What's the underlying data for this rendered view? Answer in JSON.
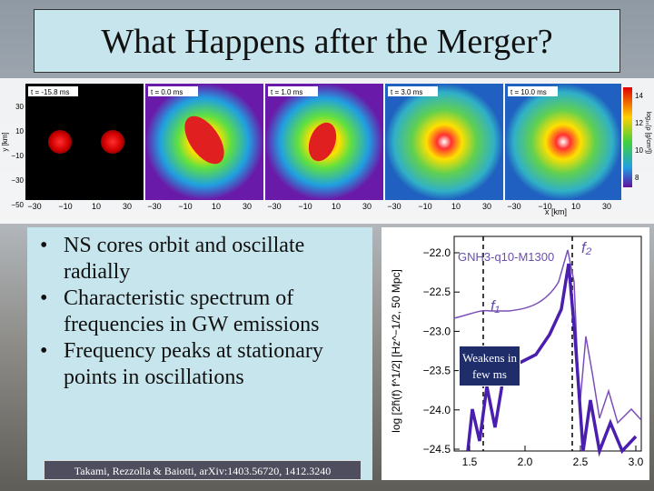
{
  "slide": {
    "title": "What Happens after the Merger?",
    "simulation": {
      "panels": [
        "t = -15.8 ms",
        "t = 0.0 ms",
        "t = 1.0 ms",
        "t = 3.0 ms",
        "t = 10.0 ms"
      ],
      "x_label": "x [km]",
      "y_label": "y [km]",
      "x_ticks": [
        "−30",
        "−10",
        "10",
        "30"
      ],
      "y_ticks": [
        "30",
        "10",
        "−10",
        "−30",
        "−50"
      ],
      "colorbar_label": "log₁₀(ρ [g/cm³])",
      "colorbar_ticks": [
        "14",
        "12",
        "10",
        "8"
      ]
    },
    "bullets": [
      "NS cores orbit and oscillate radially",
      "Characteristic spectrum of frequencies in GW emissions",
      "Frequency peaks at stationary points in oscillations"
    ],
    "citation": "Takami, Rezzolla & Baiotti, arXiv:1403.56720, 1412.3240",
    "spectrum": {
      "model": "GNH3-q10-M1300",
      "y_label": "log [2h̃(f) f^1/2] [Hz^−1/2, 50 Mpc]",
      "y_ticks": [
        "−22.0",
        "−22.5",
        "−23.0",
        "−23.5",
        "−24.0",
        "−24.5"
      ],
      "x_ticks": [
        "1.5",
        "2.0",
        "2.5",
        "3.0"
      ],
      "f1": "f₁",
      "f2": "f₂"
    },
    "callout": "Weakens in few ms"
  }
}
